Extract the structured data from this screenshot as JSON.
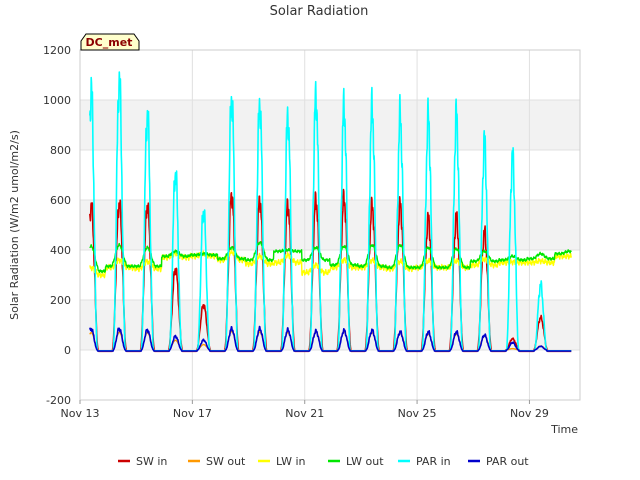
{
  "chart_data": {
    "type": "line",
    "title": "Solar Radiation",
    "xlabel": "Time",
    "ylabel": "Solar Radiation (W/m2 umol/m2/s)",
    "badge": "DC_met",
    "xlim": [
      13,
      30.8
    ],
    "ylim": [
      -200,
      1200
    ],
    "yticks": [
      -200,
      0,
      200,
      400,
      600,
      800,
      1000,
      1200
    ],
    "xticks": [
      {
        "value": 13,
        "label": "Nov 13"
      },
      {
        "value": 17,
        "label": "Nov 17"
      },
      {
        "value": 21,
        "label": "Nov 21"
      },
      {
        "value": 25,
        "label": "Nov 25"
      },
      {
        "value": 29,
        "label": "Nov 29"
      }
    ],
    "grid": true,
    "legend_position": "bottom",
    "series": [
      {
        "name": "SW in",
        "color": "#cc0000"
      },
      {
        "name": "SW out",
        "color": "#ff9900"
      },
      {
        "name": "LW in",
        "color": "#ffff00"
      },
      {
        "name": "LW out",
        "color": "#00e600"
      },
      {
        "name": "PAR in",
        "color": "#00ffff"
      },
      {
        "name": "PAR out",
        "color": "#0000cc"
      }
    ],
    "daily": {
      "days": [
        13.4,
        14.4,
        15.4,
        16.4,
        17.4,
        18.4,
        19.4,
        20.4,
        21.4,
        22.4,
        23.4,
        24.4,
        25.4,
        26.4,
        27.4,
        28.4,
        29.4,
        30.4
      ],
      "sw_in_peak": [
        580,
        590,
        580,
        325,
        180,
        620,
        600,
        580,
        600,
        605,
        575,
        580,
        525,
        530,
        470,
        45,
        130,
        0
      ],
      "par_in_peak": [
        1040,
        1080,
        945,
        710,
        560,
        1010,
        985,
        935,
        1015,
        975,
        970,
        940,
        930,
        935,
        830,
        770,
        260,
        0
      ],
      "par_out_peak": [
        85,
        85,
        80,
        55,
        40,
        85,
        85,
        80,
        75,
        78,
        78,
        72,
        72,
        72,
        60,
        30,
        15,
        0
      ],
      "lw_in_base": [
        300,
        330,
        325,
        370,
        375,
        360,
        345,
        350,
        310,
        330,
        330,
        325,
        330,
        330,
        340,
        350,
        350,
        375
      ],
      "lw_out_base": [
        315,
        335,
        335,
        375,
        380,
        365,
        360,
        395,
        360,
        340,
        335,
        330,
        330,
        330,
        355,
        360,
        365,
        385
      ],
      "lw_out_peak": [
        415,
        420,
        410,
        395,
        385,
        410,
        430,
        400,
        410,
        415,
        420,
        420,
        410,
        405,
        395,
        375,
        385,
        395
      ]
    }
  }
}
